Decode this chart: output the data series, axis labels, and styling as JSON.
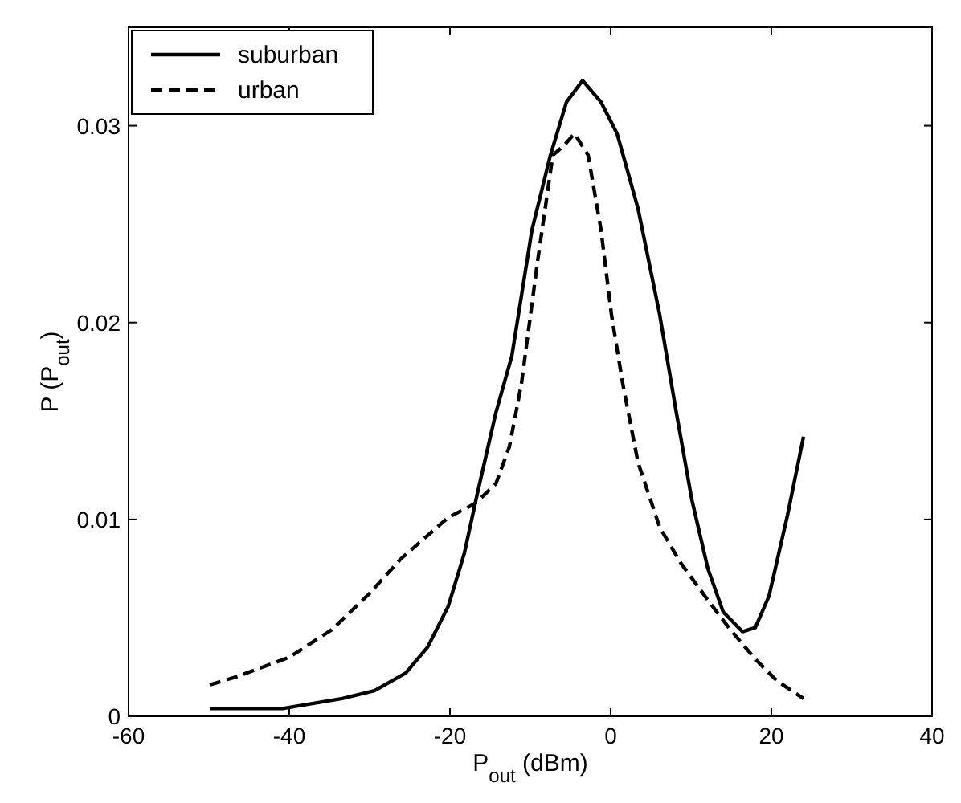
{
  "chart_data": {
    "type": "line",
    "xlabel": "P$_{out}$ (dBm)",
    "ylabel": "P (P$_{out}$)",
    "xlim": [
      -60,
      40
    ],
    "ylim": [
      0,
      0.035
    ],
    "xticks": [
      -60,
      -40,
      -20,
      0,
      20,
      40
    ],
    "yticks": [
      0,
      0.01,
      0.02,
      0.03
    ],
    "grid": false,
    "legend": "top left",
    "series": [
      {
        "name": "suburban",
        "color": "#000000",
        "line_style": "solid",
        "x": [
          -49.9,
          -40.7,
          -33.4,
          -29.4,
          -25.5,
          -22.8,
          -20.2,
          -18.2,
          -16.6,
          -14.3,
          -12.3,
          -9.8,
          -7.5,
          -5.5,
          -3.5,
          -1.2,
          0.8,
          3.4,
          6.1,
          8.1,
          10.1,
          12.1,
          14,
          16.4,
          18,
          19.7,
          22,
          24
        ],
        "values": [
          0.0004,
          0.0004,
          0.0009,
          0.0013,
          0.0022,
          0.0035,
          0.0056,
          0.0083,
          0.0113,
          0.0154,
          0.0183,
          0.0247,
          0.0285,
          0.0312,
          0.0323,
          0.0312,
          0.0296,
          0.0258,
          0.0204,
          0.0156,
          0.011,
          0.0075,
          0.0053,
          0.0043,
          0.0045,
          0.0061,
          0.0102,
          0.0142
        ]
      },
      {
        "name": "urban",
        "color": "#000000",
        "line_style": "dashed",
        "x": [
          -49.9,
          -46.6,
          -40,
          -34.7,
          -30.1,
          -26.1,
          -20.2,
          -16.9,
          -14.3,
          -12.6,
          -11.1,
          -9.1,
          -7.2,
          -5.8,
          -4.5,
          -2.8,
          -1.2,
          0.1,
          1.5,
          3.4,
          6.1,
          8.7,
          12.1,
          14.7,
          18,
          20.7,
          24
        ],
        "values": [
          0.0016,
          0.002,
          0.003,
          0.0044,
          0.0062,
          0.008,
          0.0101,
          0.0108,
          0.0118,
          0.0137,
          0.0169,
          0.0231,
          0.0285,
          0.029,
          0.0296,
          0.0285,
          0.0247,
          0.0204,
          0.0169,
          0.0129,
          0.0096,
          0.0078,
          0.0059,
          0.0045,
          0.0029,
          0.0018,
          0.0009
        ]
      }
    ]
  }
}
